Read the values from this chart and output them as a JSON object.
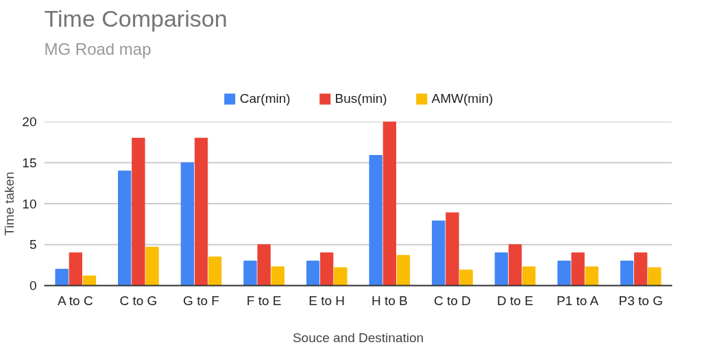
{
  "chart_data": {
    "type": "bar",
    "title": "Time Comparison",
    "subtitle": "MG Road map",
    "xlabel": "Souce and Destination",
    "ylabel": "Time taken",
    "categories": [
      "A to C",
      "C to G",
      "G to F",
      "F to E",
      "E to H",
      "H to B",
      "C to D",
      "D to E",
      "P1 to A",
      "P3 to G"
    ],
    "series": [
      {
        "name": "Car(min)",
        "color": "#4285f4",
        "values": [
          2,
          14,
          15,
          3,
          3,
          15.9,
          7.9,
          4,
          3,
          3
        ]
      },
      {
        "name": "Bus(min)",
        "color": "#ea4335",
        "values": [
          4,
          18,
          18,
          5,
          4,
          20,
          8.9,
          5,
          4,
          4
        ]
      },
      {
        "name": "AMW(min)",
        "color": "#fbbc04",
        "values": [
          1.2,
          4.7,
          3.5,
          2.3,
          2.2,
          3.7,
          1.9,
          2.3,
          2.3,
          2.2
        ]
      }
    ],
    "ylim": [
      0,
      20
    ],
    "yticks": [
      0,
      5,
      10,
      15,
      20
    ],
    "grid": "y",
    "legend": "top"
  }
}
